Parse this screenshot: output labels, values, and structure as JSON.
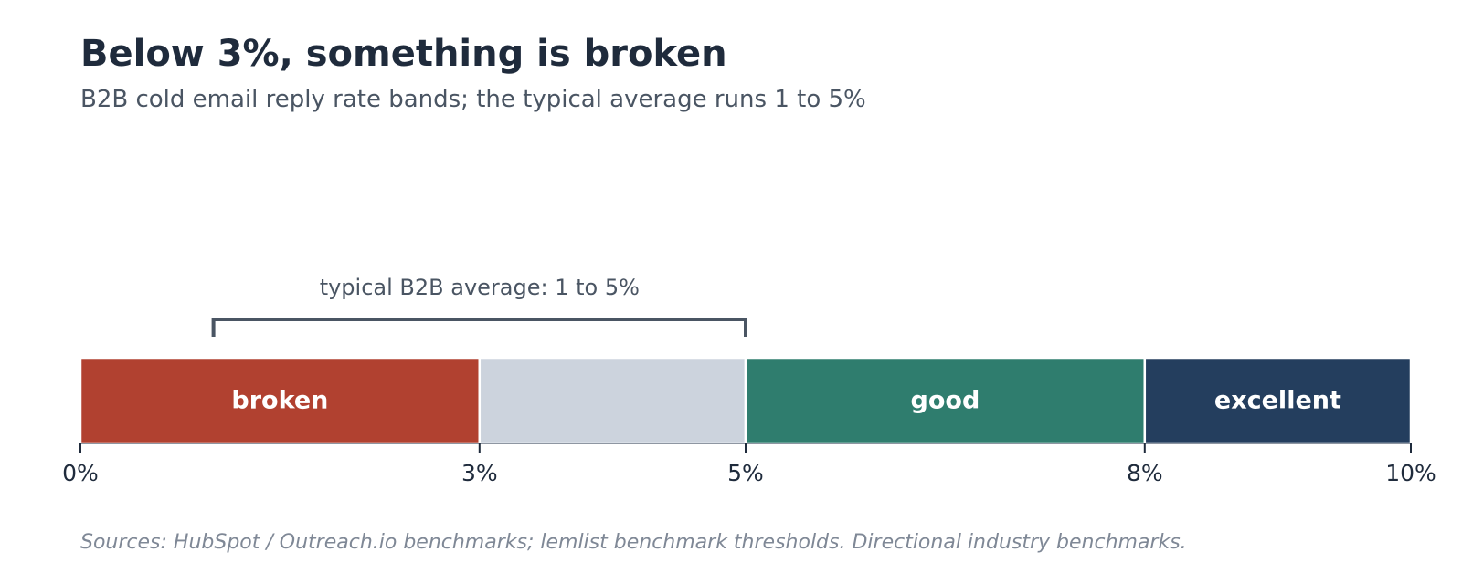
{
  "title": "Below 3%, something is broken",
  "subtitle": "B2B cold email reply rate bands; the typical average runs 1 to 5%",
  "source": "Sources: HubSpot / Outreach.io benchmarks; lemlist benchmark thresholds. Directional industry benchmarks.",
  "chart_data": {
    "type": "bar",
    "orientation": "horizontal-stacked-bands",
    "xlim": [
      0,
      10
    ],
    "x_ticks": [
      0,
      3,
      5,
      8,
      10
    ],
    "x_tick_labels": [
      "0%",
      "3%",
      "5%",
      "8%",
      "10%"
    ],
    "grid": false,
    "bands": [
      {
        "label": "broken",
        "start": 0,
        "end": 3,
        "color": "#b14130"
      },
      {
        "label": "",
        "start": 3,
        "end": 5,
        "color": "#ccd3dd"
      },
      {
        "label": "good",
        "start": 5,
        "end": 8,
        "color": "#2f7d6e"
      },
      {
        "label": "excellent",
        "start": 8,
        "end": 10,
        "color": "#243e5e"
      }
    ],
    "annotation": {
      "text": "typical B2B average: 1 to 5%",
      "start": 1,
      "end": 5,
      "color": "#4a5563"
    },
    "axis_color": "#8e96a2",
    "tick_label_color": "#1f2b3c",
    "band_label_color": "#ffffff"
  }
}
